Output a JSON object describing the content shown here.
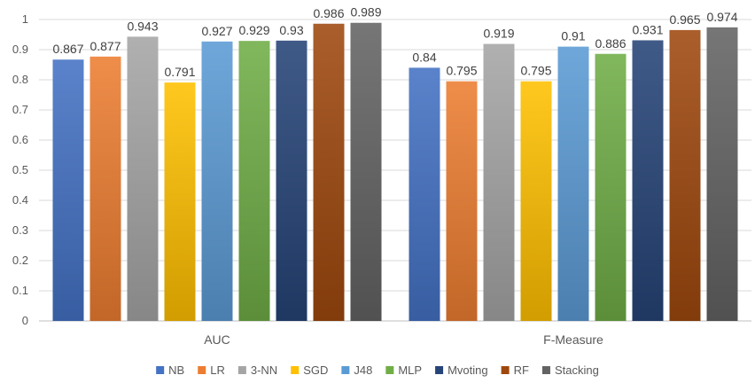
{
  "chart_data": {
    "type": "bar",
    "title": "",
    "xlabel": "",
    "ylabel": "",
    "categories": [
      "AUC",
      "F-Measure"
    ],
    "ylim": [
      0,
      1
    ],
    "yticks": [
      "0",
      "0.1",
      "0.2",
      "0.3",
      "0.4",
      "0.5",
      "0.6",
      "0.7",
      "0.8",
      "0.9",
      "1"
    ],
    "grid": true,
    "legend": "bottom",
    "series": [
      {
        "name": "NB",
        "values": [
          0.867,
          0.84
        ],
        "labels": [
          "0.867",
          "0.84"
        ],
        "color": "#4472C4"
      },
      {
        "name": "LR",
        "values": [
          0.877,
          0.795
        ],
        "labels": [
          "0.877",
          "0.795"
        ],
        "color": "#ED7D31"
      },
      {
        "name": "3-NN",
        "values": [
          0.943,
          0.919
        ],
        "labels": [
          "0.943",
          "0.919"
        ],
        "color": "#A5A5A5"
      },
      {
        "name": "SGD",
        "values": [
          0.791,
          0.795
        ],
        "labels": [
          "0.791",
          "0.795"
        ],
        "color": "#FFC000"
      },
      {
        "name": "J48",
        "values": [
          0.927,
          0.91
        ],
        "labels": [
          "0.927",
          "0.91"
        ],
        "color": "#5B9BD5"
      },
      {
        "name": "MLP",
        "values": [
          0.929,
          0.886
        ],
        "labels": [
          "0.929",
          "0.886"
        ],
        "color": "#70AD47"
      },
      {
        "name": "Mvoting",
        "values": [
          0.93,
          0.931
        ],
        "labels": [
          "0.93",
          "0.931"
        ],
        "color": "#264478"
      },
      {
        "name": "RF",
        "values": [
          0.986,
          0.965
        ],
        "labels": [
          "0.986",
          "0.965"
        ],
        "color": "#9E480E"
      },
      {
        "name": "Stacking",
        "values": [
          0.989,
          0.974
        ],
        "labels": [
          "0.989",
          "0.974"
        ],
        "color": "#636363"
      }
    ]
  }
}
